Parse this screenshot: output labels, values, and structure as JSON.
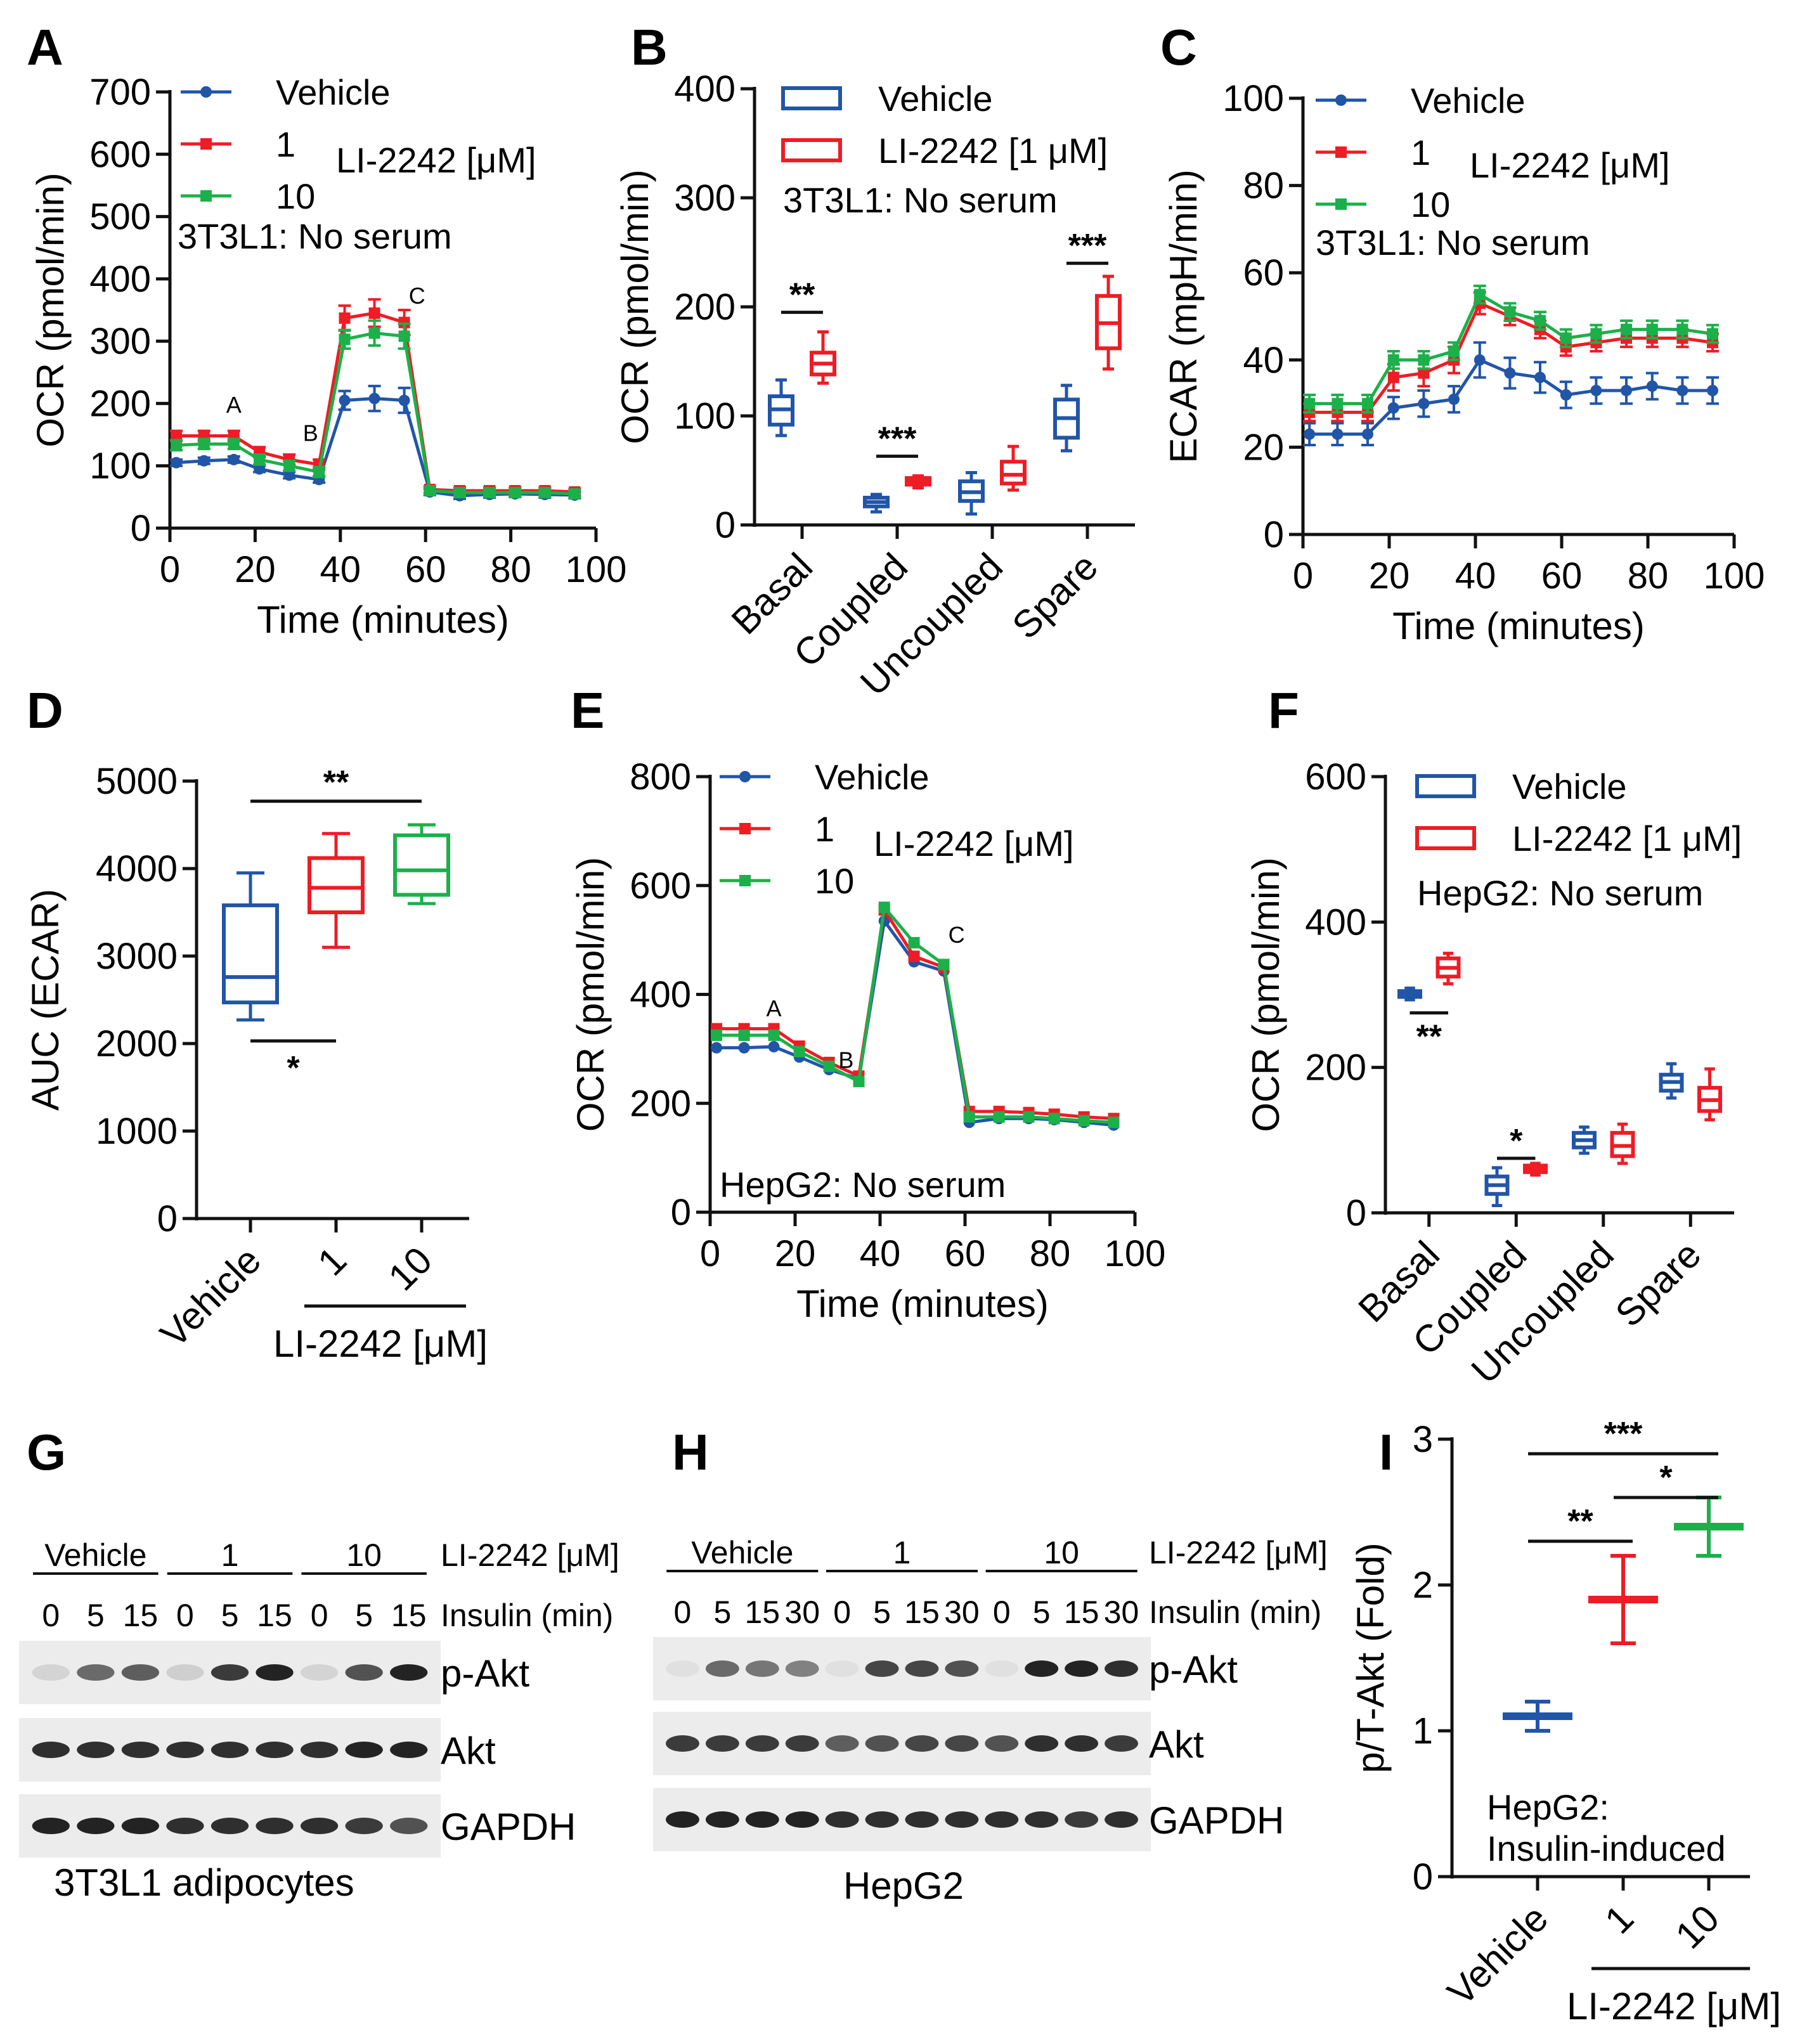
{
  "figure": {
    "panels": [
      {
        "id": "A",
        "label": "A"
      },
      {
        "id": "B",
        "label": "B"
      },
      {
        "id": "C",
        "label": "C"
      },
      {
        "id": "D",
        "label": "D"
      },
      {
        "id": "E",
        "label": "E"
      },
      {
        "id": "F",
        "label": "F"
      },
      {
        "id": "G",
        "label": "G"
      },
      {
        "id": "H",
        "label": "H"
      },
      {
        "id": "I",
        "label": "I"
      }
    ]
  },
  "colors": {
    "vehicle": "#2155a8",
    "li1": "#ee1c25",
    "li10": "#1cb04a"
  },
  "chart_data": [
    {
      "id": "A",
      "type": "line",
      "xlabel": "Time (minutes)",
      "ylabel": "OCR (pmol/min)",
      "xlim": [
        0,
        100
      ],
      "ylim": [
        0,
        700
      ],
      "xticks": [
        0,
        20,
        40,
        60,
        80,
        100
      ],
      "yticks": [
        0,
        100,
        200,
        300,
        400,
        500,
        600,
        700
      ],
      "legend": {
        "entries": [
          "Vehicle",
          "1",
          "10"
        ],
        "unit": "LI-2242 [μM]"
      },
      "note": "3T3L1: No serum",
      "annotations": [
        {
          "text": "A",
          "x": 15,
          "y": 185
        },
        {
          "text": "B",
          "x": 33,
          "y": 140
        },
        {
          "text": "C",
          "x": 58,
          "y": 360
        }
      ],
      "x": [
        1.5,
        8,
        15,
        21,
        28,
        35,
        41,
        48,
        55,
        61,
        68,
        75,
        81,
        88,
        95
      ],
      "series": [
        {
          "name": "Vehicle",
          "color_key": "vehicle",
          "marker": "circle",
          "values": [
            105,
            108,
            110,
            95,
            85,
            78,
            205,
            208,
            205,
            58,
            52,
            54,
            55,
            54,
            53
          ],
          "errors": [
            5,
            5,
            5,
            5,
            5,
            5,
            15,
            20,
            20,
            5,
            5,
            5,
            5,
            5,
            5
          ]
        },
        {
          "name": "1",
          "color_key": "li1",
          "marker": "square",
          "values": [
            148,
            148,
            148,
            122,
            110,
            102,
            337,
            345,
            330,
            62,
            60,
            60,
            60,
            60,
            58
          ],
          "errors": [
            8,
            8,
            8,
            8,
            8,
            8,
            20,
            22,
            20,
            5,
            5,
            5,
            5,
            5,
            5
          ]
        },
        {
          "name": "10",
          "color_key": "li10",
          "marker": "square",
          "values": [
            133,
            135,
            135,
            110,
            100,
            90,
            303,
            313,
            308,
            60,
            57,
            57,
            57,
            57,
            55
          ],
          "errors": [
            8,
            8,
            8,
            8,
            8,
            8,
            15,
            20,
            20,
            5,
            5,
            5,
            5,
            5,
            5
          ]
        }
      ]
    },
    {
      "id": "B",
      "type": "box",
      "ylabel": "OCR (pmol/min)",
      "ylim": [
        0,
        400
      ],
      "yticks": [
        0,
        100,
        200,
        300,
        400
      ],
      "categories": [
        "Basal",
        "Coupled",
        "Uncoupled",
        "Spare"
      ],
      "legend": {
        "entries": [
          "Vehicle",
          "LI-2242 [1 μM]"
        ]
      },
      "note": "3T3L1: No serum",
      "series": [
        {
          "name": "Vehicle",
          "color_key": "vehicle",
          "boxes": [
            {
              "min": 82,
              "q1": 92,
              "median": 106,
              "q3": 118,
              "max": 133
            },
            {
              "min": 12,
              "q1": 17,
              "median": 21,
              "q3": 25,
              "max": 28
            },
            {
              "min": 10,
              "q1": 22,
              "median": 30,
              "q3": 40,
              "max": 48
            },
            {
              "min": 68,
              "q1": 80,
              "median": 98,
              "q3": 115,
              "max": 128
            }
          ]
        },
        {
          "name": "LI-2242 [1 μM]",
          "color_key": "li1",
          "boxes": [
            {
              "min": 130,
              "q1": 138,
              "median": 148,
              "q3": 158,
              "max": 177
            },
            {
              "min": 34,
              "q1": 37,
              "median": 40,
              "q3": 43,
              "max": 45
            },
            {
              "min": 32,
              "q1": 38,
              "median": 46,
              "q3": 58,
              "max": 72
            },
            {
              "min": 143,
              "q1": 162,
              "median": 185,
              "q3": 210,
              "max": 228
            }
          ]
        }
      ],
      "significance": [
        {
          "category": 0,
          "text": "**",
          "y": 195
        },
        {
          "category": 1,
          "text": "***",
          "y": 63
        },
        {
          "category": 3,
          "text": "***",
          "y": 240
        }
      ]
    },
    {
      "id": "C",
      "type": "line",
      "xlabel": "Time (minutes)",
      "ylabel": "ECAR (mpH/min)",
      "xlim": [
        0,
        100
      ],
      "ylim": [
        0,
        100
      ],
      "xticks": [
        0,
        20,
        40,
        60,
        80,
        100
      ],
      "yticks": [
        0,
        20,
        40,
        60,
        80,
        100
      ],
      "legend": {
        "entries": [
          "Vehicle",
          "1",
          "10"
        ],
        "unit": "LI-2242 [μM]"
      },
      "note": "3T3L1: No serum",
      "x": [
        1.5,
        8,
        15,
        21,
        28,
        35,
        41,
        48,
        55,
        61,
        68,
        75,
        81,
        88,
        95
      ],
      "series": [
        {
          "name": "Vehicle",
          "color_key": "vehicle",
          "marker": "circle",
          "values": [
            23,
            23,
            23,
            29,
            30,
            31,
            40,
            37,
            36,
            32,
            33,
            33,
            34,
            33,
            33
          ],
          "errors": [
            2.5,
            2.5,
            2.5,
            2.5,
            3,
            3,
            4,
            3.5,
            3.5,
            3,
            3,
            3,
            3,
            3,
            3
          ]
        },
        {
          "name": "1",
          "color_key": "li1",
          "marker": "square",
          "values": [
            28,
            28,
            28,
            36,
            37,
            40,
            53,
            50,
            47,
            43,
            44,
            45,
            45,
            45,
            44
          ],
          "errors": [
            2,
            2,
            2,
            3,
            3,
            3,
            2.5,
            2,
            2,
            2,
            2,
            2,
            2,
            2,
            2
          ]
        },
        {
          "name": "10",
          "color_key": "li10",
          "marker": "square",
          "values": [
            30,
            30,
            30,
            40,
            40,
            42,
            55,
            51,
            49,
            45,
            46,
            47,
            47,
            47,
            46
          ],
          "errors": [
            2,
            2,
            2,
            2,
            2,
            2,
            2,
            2,
            2,
            2,
            2,
            2,
            2,
            2,
            2
          ]
        }
      ]
    },
    {
      "id": "D",
      "type": "box",
      "ylabel": "AUC (ECAR)",
      "ylim": [
        0,
        5000
      ],
      "yticks": [
        0,
        1000,
        2000,
        3000,
        4000,
        5000
      ],
      "categories": [
        "Vehicle",
        "1",
        "10"
      ],
      "group_label": "LI-2242 [μM]",
      "series": [
        {
          "name": "Vehicle",
          "color_key": "vehicle",
          "box": {
            "min": 2270,
            "q1": 2470,
            "median": 2760,
            "q3": 3580,
            "max": 3950
          }
        },
        {
          "name": "1",
          "color_key": "li1",
          "box": {
            "min": 3100,
            "q1": 3500,
            "median": 3780,
            "q3": 4120,
            "max": 4400
          }
        },
        {
          "name": "10",
          "color_key": "li10",
          "box": {
            "min": 3600,
            "q1": 3700,
            "median": 3980,
            "q3": 4380,
            "max": 4500
          }
        }
      ],
      "significance": [
        {
          "text": "**",
          "from": 0,
          "to": 2,
          "y": 4770,
          "label_pos": "above"
        },
        {
          "text": "*",
          "from": 0,
          "to": 1,
          "y": 2030,
          "label_pos": "below"
        }
      ]
    },
    {
      "id": "E",
      "type": "line",
      "xlabel": "Time (minutes)",
      "ylabel": "OCR (pmol/min)",
      "xlim": [
        0,
        100
      ],
      "ylim": [
        0,
        800
      ],
      "xticks": [
        0,
        20,
        40,
        60,
        80,
        100
      ],
      "yticks": [
        0,
        200,
        400,
        600,
        800
      ],
      "legend": {
        "entries": [
          "Vehicle",
          "1",
          "10"
        ],
        "unit": "LI-2242 [μM]"
      },
      "note": "HepG2: No serum",
      "annotations": [
        {
          "text": "A",
          "x": 15,
          "y": 360
        },
        {
          "text": "B",
          "x": 32,
          "y": 265
        },
        {
          "text": "C",
          "x": 58,
          "y": 495
        }
      ],
      "x": [
        1.5,
        8,
        15,
        21,
        28,
        35,
        41,
        48,
        55,
        61,
        68,
        75,
        81,
        88,
        95
      ],
      "series": [
        {
          "name": "Vehicle",
          "color_key": "vehicle",
          "marker": "circle",
          "values": [
            302,
            302,
            304,
            285,
            262,
            245,
            535,
            460,
            443,
            165,
            172,
            172,
            170,
            165,
            160
          ]
        },
        {
          "name": "1",
          "color_key": "li1",
          "marker": "square",
          "values": [
            337,
            337,
            337,
            305,
            275,
            250,
            555,
            470,
            450,
            185,
            185,
            183,
            180,
            175,
            172
          ]
        },
        {
          "name": "10",
          "color_key": "li10",
          "marker": "square",
          "values": [
            325,
            325,
            325,
            295,
            268,
            240,
            560,
            495,
            455,
            175,
            175,
            175,
            172,
            168,
            165
          ]
        }
      ]
    },
    {
      "id": "F",
      "type": "box",
      "ylabel": "OCR (pmol/min)",
      "ylim": [
        0,
        600
      ],
      "yticks": [
        0,
        200,
        400,
        600
      ],
      "categories": [
        "Basal",
        "Coupled",
        "Uncoupled",
        "Spare"
      ],
      "legend": {
        "entries": [
          "Vehicle",
          "LI-2242 [1 μM]"
        ]
      },
      "note": "HepG2: No serum",
      "series": [
        {
          "name": "Vehicle",
          "color_key": "vehicle",
          "boxes": [
            {
              "min": 293,
              "q1": 297,
              "median": 301,
              "q3": 305,
              "max": 309
            },
            {
              "min": 10,
              "q1": 26,
              "median": 38,
              "q3": 50,
              "max": 62
            },
            {
              "min": 82,
              "q1": 90,
              "median": 100,
              "q3": 110,
              "max": 118
            },
            {
              "min": 158,
              "q1": 168,
              "median": 180,
              "q3": 190,
              "max": 205
            }
          ]
        },
        {
          "name": "LI-2242 [1 μM]",
          "color_key": "li1",
          "boxes": [
            {
              "min": 315,
              "q1": 325,
              "median": 337,
              "q3": 350,
              "max": 357
            },
            {
              "min": 52,
              "q1": 56,
              "median": 60,
              "q3": 65,
              "max": 68
            },
            {
              "min": 68,
              "q1": 78,
              "median": 92,
              "q3": 110,
              "max": 122
            },
            {
              "min": 128,
              "q1": 140,
              "median": 155,
              "q3": 172,
              "max": 198
            }
          ]
        }
      ],
      "significance": [
        {
          "category": 0,
          "text": "**",
          "y": 275,
          "label_pos": "below"
        },
        {
          "category": 1,
          "text": "*",
          "y": 75,
          "label_pos": "above"
        }
      ]
    },
    {
      "id": "I",
      "type": "scatter",
      "ylabel": "p/T-Akt (Fold)",
      "ylim": [
        0,
        3
      ],
      "yticks": [
        0,
        1,
        2,
        3
      ],
      "categories": [
        "Vehicle",
        "1",
        "10"
      ],
      "group_label": "LI-2242 [μM]",
      "note": [
        "HepG2:",
        "Insulin-induced"
      ],
      "series": [
        {
          "name": "Vehicle",
          "color_key": "vehicle",
          "mean": 1.1,
          "error": 0.1
        },
        {
          "name": "1",
          "color_key": "li1",
          "mean": 1.9,
          "error": 0.3
        },
        {
          "name": "10",
          "color_key": "li10",
          "mean": 2.4,
          "error": 0.2
        }
      ],
      "significance": [
        {
          "text": "***",
          "from": 0,
          "to": 2,
          "y": 2.9
        },
        {
          "text": "*",
          "from": 1,
          "to": 2,
          "y": 2.6
        },
        {
          "text": "**",
          "from": 0,
          "to": 1,
          "y": 2.3
        }
      ]
    }
  ],
  "blots": [
    {
      "id": "G",
      "caption": "3T3L1 adipocytes",
      "groups": [
        "Vehicle",
        "1",
        "10"
      ],
      "group_header": "LI-2242 [μM]",
      "insulin_times": [
        "0",
        "5",
        "15",
        "0",
        "5",
        "15",
        "0",
        "5",
        "15"
      ],
      "insulin_header": "Insulin (min)",
      "rows": [
        "p-Akt",
        "Akt",
        "GAPDH"
      ],
      "intensities": [
        [
          0.1,
          0.55,
          0.6,
          0.12,
          0.75,
          0.85,
          0.1,
          0.65,
          0.85
        ],
        [
          0.8,
          0.8,
          0.8,
          0.8,
          0.8,
          0.8,
          0.8,
          0.85,
          0.85
        ],
        [
          0.85,
          0.85,
          0.85,
          0.8,
          0.8,
          0.8,
          0.8,
          0.75,
          0.65
        ]
      ]
    },
    {
      "id": "H",
      "caption": "HepG2",
      "groups": [
        "Vehicle",
        "1",
        "10"
      ],
      "group_header": "LI-2242 [μM]",
      "insulin_times": [
        "0",
        "5",
        "15",
        "30",
        "0",
        "5",
        "15",
        "30",
        "0",
        "5",
        "15",
        "30"
      ],
      "insulin_header": "Insulin (min)",
      "rows": [
        "p-Akt",
        "Akt",
        "GAPDH"
      ],
      "intensities": [
        [
          0.05,
          0.55,
          0.5,
          0.45,
          0.05,
          0.7,
          0.7,
          0.65,
          0.05,
          0.85,
          0.85,
          0.8
        ],
        [
          0.75,
          0.75,
          0.75,
          0.75,
          0.6,
          0.65,
          0.7,
          0.7,
          0.65,
          0.8,
          0.8,
          0.75
        ],
        [
          0.85,
          0.85,
          0.85,
          0.85,
          0.8,
          0.8,
          0.8,
          0.8,
          0.8,
          0.8,
          0.75,
          0.8
        ]
      ]
    }
  ]
}
